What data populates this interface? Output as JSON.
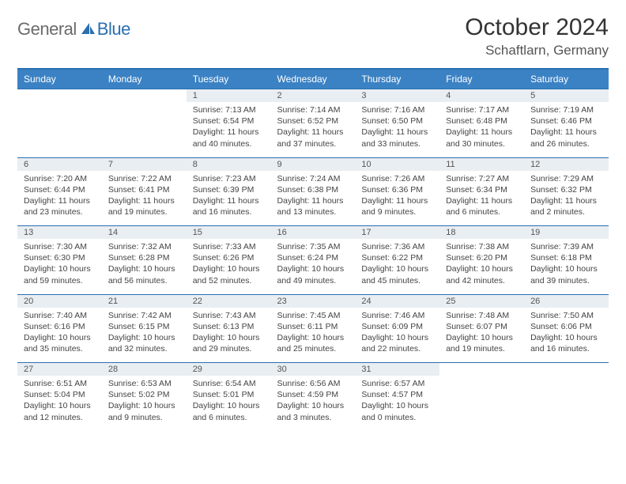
{
  "brand": {
    "part1": "General",
    "part2": "Blue"
  },
  "title": "October 2024",
  "location": "Schaftlarn, Germany",
  "colors": {
    "header_bg": "#3b82c4",
    "header_border": "#2a6fb0",
    "daynum_bg": "#e9eef2",
    "text": "#333333",
    "muted": "#555555"
  },
  "day_names": [
    "Sunday",
    "Monday",
    "Tuesday",
    "Wednesday",
    "Thursday",
    "Friday",
    "Saturday"
  ],
  "weeks": [
    [
      null,
      null,
      {
        "n": "1",
        "sr": "7:13 AM",
        "ss": "6:54 PM",
        "dl": "11 hours and 40 minutes."
      },
      {
        "n": "2",
        "sr": "7:14 AM",
        "ss": "6:52 PM",
        "dl": "11 hours and 37 minutes."
      },
      {
        "n": "3",
        "sr": "7:16 AM",
        "ss": "6:50 PM",
        "dl": "11 hours and 33 minutes."
      },
      {
        "n": "4",
        "sr": "7:17 AM",
        "ss": "6:48 PM",
        "dl": "11 hours and 30 minutes."
      },
      {
        "n": "5",
        "sr": "7:19 AM",
        "ss": "6:46 PM",
        "dl": "11 hours and 26 minutes."
      }
    ],
    [
      {
        "n": "6",
        "sr": "7:20 AM",
        "ss": "6:44 PM",
        "dl": "11 hours and 23 minutes."
      },
      {
        "n": "7",
        "sr": "7:22 AM",
        "ss": "6:41 PM",
        "dl": "11 hours and 19 minutes."
      },
      {
        "n": "8",
        "sr": "7:23 AM",
        "ss": "6:39 PM",
        "dl": "11 hours and 16 minutes."
      },
      {
        "n": "9",
        "sr": "7:24 AM",
        "ss": "6:38 PM",
        "dl": "11 hours and 13 minutes."
      },
      {
        "n": "10",
        "sr": "7:26 AM",
        "ss": "6:36 PM",
        "dl": "11 hours and 9 minutes."
      },
      {
        "n": "11",
        "sr": "7:27 AM",
        "ss": "6:34 PM",
        "dl": "11 hours and 6 minutes."
      },
      {
        "n": "12",
        "sr": "7:29 AM",
        "ss": "6:32 PM",
        "dl": "11 hours and 2 minutes."
      }
    ],
    [
      {
        "n": "13",
        "sr": "7:30 AM",
        "ss": "6:30 PM",
        "dl": "10 hours and 59 minutes."
      },
      {
        "n": "14",
        "sr": "7:32 AM",
        "ss": "6:28 PM",
        "dl": "10 hours and 56 minutes."
      },
      {
        "n": "15",
        "sr": "7:33 AM",
        "ss": "6:26 PM",
        "dl": "10 hours and 52 minutes."
      },
      {
        "n": "16",
        "sr": "7:35 AM",
        "ss": "6:24 PM",
        "dl": "10 hours and 49 minutes."
      },
      {
        "n": "17",
        "sr": "7:36 AM",
        "ss": "6:22 PM",
        "dl": "10 hours and 45 minutes."
      },
      {
        "n": "18",
        "sr": "7:38 AM",
        "ss": "6:20 PM",
        "dl": "10 hours and 42 minutes."
      },
      {
        "n": "19",
        "sr": "7:39 AM",
        "ss": "6:18 PM",
        "dl": "10 hours and 39 minutes."
      }
    ],
    [
      {
        "n": "20",
        "sr": "7:40 AM",
        "ss": "6:16 PM",
        "dl": "10 hours and 35 minutes."
      },
      {
        "n": "21",
        "sr": "7:42 AM",
        "ss": "6:15 PM",
        "dl": "10 hours and 32 minutes."
      },
      {
        "n": "22",
        "sr": "7:43 AM",
        "ss": "6:13 PM",
        "dl": "10 hours and 29 minutes."
      },
      {
        "n": "23",
        "sr": "7:45 AM",
        "ss": "6:11 PM",
        "dl": "10 hours and 25 minutes."
      },
      {
        "n": "24",
        "sr": "7:46 AM",
        "ss": "6:09 PM",
        "dl": "10 hours and 22 minutes."
      },
      {
        "n": "25",
        "sr": "7:48 AM",
        "ss": "6:07 PM",
        "dl": "10 hours and 19 minutes."
      },
      {
        "n": "26",
        "sr": "7:50 AM",
        "ss": "6:06 PM",
        "dl": "10 hours and 16 minutes."
      }
    ],
    [
      {
        "n": "27",
        "sr": "6:51 AM",
        "ss": "5:04 PM",
        "dl": "10 hours and 12 minutes."
      },
      {
        "n": "28",
        "sr": "6:53 AM",
        "ss": "5:02 PM",
        "dl": "10 hours and 9 minutes."
      },
      {
        "n": "29",
        "sr": "6:54 AM",
        "ss": "5:01 PM",
        "dl": "10 hours and 6 minutes."
      },
      {
        "n": "30",
        "sr": "6:56 AM",
        "ss": "4:59 PM",
        "dl": "10 hours and 3 minutes."
      },
      {
        "n": "31",
        "sr": "6:57 AM",
        "ss": "4:57 PM",
        "dl": "10 hours and 0 minutes."
      },
      null,
      null
    ]
  ],
  "labels": {
    "sunrise": "Sunrise:",
    "sunset": "Sunset:",
    "daylight": "Daylight:"
  }
}
